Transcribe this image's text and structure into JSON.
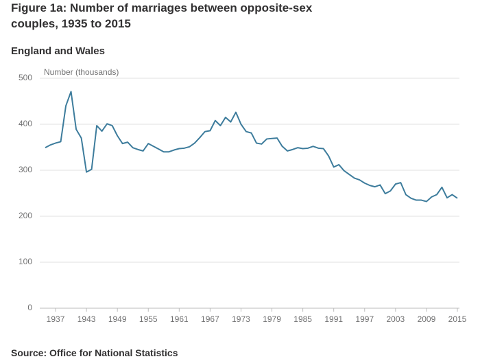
{
  "chart_data": {
    "type": "line",
    "title": "Figure 1a: Number of marriages between opposite-sex couples, 1935 to 2015",
    "subtitle": "England and Wales",
    "y_label": "Number (thousands)",
    "source": "Source: Office for National Statistics",
    "x": [
      1935,
      1936,
      1937,
      1938,
      1939,
      1940,
      1941,
      1942,
      1943,
      1944,
      1945,
      1946,
      1947,
      1948,
      1949,
      1950,
      1951,
      1952,
      1953,
      1954,
      1955,
      1956,
      1957,
      1958,
      1959,
      1960,
      1961,
      1962,
      1963,
      1964,
      1965,
      1966,
      1967,
      1968,
      1969,
      1970,
      1971,
      1972,
      1973,
      1974,
      1975,
      1976,
      1977,
      1978,
      1979,
      1980,
      1981,
      1982,
      1983,
      1984,
      1985,
      1986,
      1987,
      1988,
      1989,
      1990,
      1991,
      1992,
      1993,
      1994,
      1995,
      1996,
      1997,
      1998,
      1999,
      2000,
      2001,
      2002,
      2003,
      2004,
      2005,
      2006,
      2007,
      2008,
      2009,
      2010,
      2011,
      2012,
      2013,
      2014,
      2015
    ],
    "series": [
      {
        "name": "Marriages",
        "color": "#3d7c9c",
        "values": [
          349,
          355,
          359,
          362,
          440,
          471,
          389,
          370,
          296,
          302,
          397,
          385,
          401,
          397,
          375,
          358,
          361,
          349,
          345,
          342,
          358,
          352,
          346,
          340,
          340,
          344,
          347,
          348,
          351,
          359,
          371,
          384,
          386,
          408,
          397,
          415,
          405,
          426,
          400,
          384,
          381,
          359,
          357,
          368,
          369,
          370,
          352,
          342,
          345,
          349,
          347,
          348,
          352,
          348,
          347,
          331,
          307,
          312,
          299,
          291,
          283,
          279,
          272,
          267,
          264,
          268,
          249,
          255,
          270,
          273,
          247,
          239,
          235,
          235,
          232,
          242,
          247,
          263,
          240,
          247,
          239
        ]
      }
    ],
    "xlim": [
      1935,
      2015
    ],
    "xticks": [
      1937,
      1943,
      1949,
      1955,
      1961,
      1967,
      1973,
      1979,
      1985,
      1991,
      1997,
      2003,
      2009,
      2015
    ],
    "ylim": [
      0,
      500
    ],
    "yticks": [
      0,
      100,
      200,
      300,
      400,
      500
    ],
    "grid": true
  }
}
